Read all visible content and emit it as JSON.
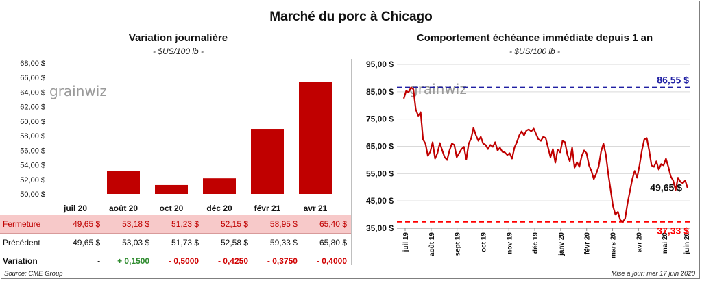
{
  "title": "Marché du porc à Chicago",
  "left": {
    "subtitle": "Variation journalière",
    "units": "- $US/100 lb -",
    "watermark": "grainwiz",
    "chart_data": {
      "type": "bar",
      "categories": [
        "juil 20",
        "août 20",
        "oct 20",
        "déc 20",
        "févr 21",
        "avr 21"
      ],
      "values": [
        49.65,
        53.18,
        51.23,
        52.15,
        58.95,
        65.4
      ],
      "ylim": [
        50,
        68
      ],
      "yticks": [
        "50,00 $",
        "52,00 $",
        "54,00 $",
        "56,00 $",
        "58,00 $",
        "60,00 $",
        "62,00 $",
        "64,00 $",
        "66,00 $",
        "68,00 $"
      ],
      "bar_color": "#c00000"
    },
    "table": {
      "rows": [
        {
          "label": "Fermeture",
          "values": [
            "49,65  $",
            "53,18  $",
            "51,23  $",
            "52,15  $",
            "58,95  $",
            "65,40  $"
          ]
        },
        {
          "label": "Précédent",
          "values": [
            "49,65  $",
            "53,03  $",
            "51,73  $",
            "52,58  $",
            "59,33  $",
            "65,80  $"
          ]
        },
        {
          "label": "Variation",
          "values": [
            "-",
            "+ 0,1500",
            "- 0,5000",
            "- 0,4250",
            "- 0,3750",
            "- 0,4000"
          ]
        }
      ]
    }
  },
  "right": {
    "subtitle": "Comportement  échéance immédiate depuis 1 an",
    "units": "- $US/100 lb -",
    "watermark": "grainwiz",
    "chart_data": {
      "type": "line",
      "ylim": [
        35,
        95
      ],
      "yticks": [
        "35,00 $",
        "45,00 $",
        "55,00 $",
        "65,00 $",
        "75,00 $",
        "85,00 $",
        "95,00 $"
      ],
      "xticks": [
        "juil 19",
        "août 19",
        "sept 19",
        "oct 19",
        "nov 19",
        "déc 19",
        "janv 20",
        "févr 20",
        "mars 20",
        "avr 20",
        "mai 20",
        "juin 20"
      ],
      "series": [
        {
          "values": [
            82.5,
            85.3,
            84.8,
            86.55,
            85.9,
            78.5,
            76.2,
            77.5,
            67.5,
            66.0,
            61.5,
            63.0,
            66.5,
            60.5,
            62.5,
            66.2,
            63.5,
            61.0,
            60.0,
            63.5,
            66.0,
            65.5,
            61.0,
            62.5,
            64.0,
            64.8,
            60.2,
            66.0,
            67.8,
            71.8,
            69.0,
            67.0,
            68.5,
            66.0,
            65.5,
            64.0,
            65.5,
            64.8,
            66.5,
            63.5,
            64.5,
            63.0,
            62.8,
            61.8,
            62.5,
            60.5,
            64.5,
            66.5,
            69.0,
            70.5,
            69.0,
            70.8,
            71.2,
            70.5,
            71.5,
            69.5,
            67.5,
            67.0,
            68.5,
            68.0,
            64.5,
            61.0,
            64.0,
            59.0,
            63.8,
            62.8,
            67.0,
            66.5,
            62.0,
            59.5,
            64.5,
            57.2,
            59.2,
            57.5,
            61.5,
            63.5,
            62.5,
            58.0,
            56.0,
            53.0,
            55.0,
            57.5,
            63.0,
            66.0,
            62.0,
            55.0,
            49.0,
            43.0,
            40.0,
            41.0,
            38.0,
            37.33,
            38.5,
            44.0,
            48.5,
            53.0,
            56.0,
            53.5,
            58.0,
            63.5,
            67.5,
            68.0,
            63.5,
            58.0,
            57.5,
            59.5,
            56.5,
            58.5,
            58.0,
            60.5,
            57.5,
            54.0,
            52.5,
            49.0,
            53.5,
            52.0,
            51.5,
            52.5,
            49.65
          ]
        }
      ],
      "max_value": 86.55,
      "min_value": 37.33,
      "last_value": 49.65,
      "max_label": "86,55 $",
      "min_label": "37,33 $",
      "last_label": "49,65 $",
      "line_color": "#c00000",
      "max_color": "#1f1fa3",
      "min_color": "#ff0000"
    }
  },
  "footer": {
    "source": "Source: CME Group",
    "updated": "Mise à jour: mer 17 juin 2020"
  }
}
